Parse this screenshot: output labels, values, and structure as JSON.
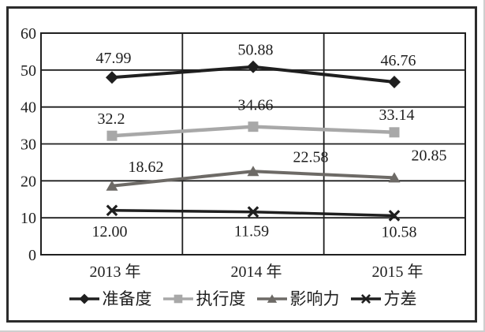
{
  "frame": {
    "border_color": "#2b2b2b",
    "background": "#ffffff"
  },
  "chart_data": {
    "type": "line",
    "title": "",
    "xlabel": "",
    "ylabel": "",
    "categories": [
      "2013 年",
      "2014 年",
      "2015 年"
    ],
    "series": [
      {
        "name": "准备度",
        "values": [
          47.99,
          50.88,
          46.76
        ],
        "labels": [
          "47.99",
          "50.88",
          "46.76"
        ],
        "color": "#1f1f1f",
        "marker": "diamond"
      },
      {
        "name": "执行度",
        "values": [
          32.2,
          34.66,
          33.14
        ],
        "labels": [
          "32.2",
          "34.66",
          "33.14"
        ],
        "color": "#a8a8a8",
        "marker": "square"
      },
      {
        "name": "影响力",
        "values": [
          18.62,
          22.58,
          20.85
        ],
        "labels": [
          "18.62",
          "22.58",
          "20.85"
        ],
        "color": "#6d6a66",
        "marker": "triangle"
      },
      {
        "name": "方差",
        "values": [
          12.0,
          11.59,
          10.58
        ],
        "labels": [
          "12.00",
          "11.59",
          "10.58"
        ],
        "color": "#1f1f1f",
        "marker": "x"
      }
    ],
    "ylim": [
      0,
      60
    ],
    "yticks": [
      0,
      10,
      20,
      30,
      40,
      50,
      60
    ],
    "grid": "horizontal-gridlines-and-category-separators",
    "legend_position": "bottom",
    "axis_color": "#1f1f1f",
    "label_color": "#1f1f1f"
  }
}
